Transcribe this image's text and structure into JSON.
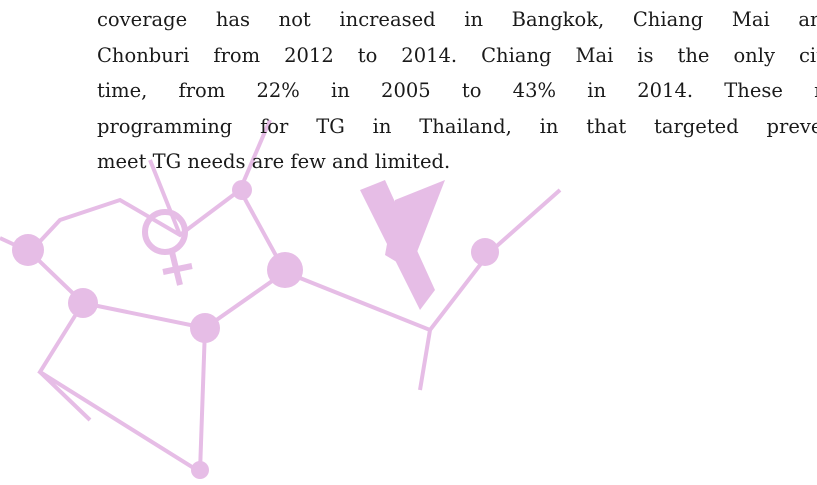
{
  "body": {
    "lines": [
      "coverage has not increased in Bangkok, Chiang Mai and",
      "Chonburi from 2012 to 2014. Chiang Mai is the only city",
      "time, from 22% in 2005 to 43% in 2014.  These re",
      "programming for TG in Thailand, in that targeted preven",
      "meet TG needs are few and limited."
    ]
  }
}
